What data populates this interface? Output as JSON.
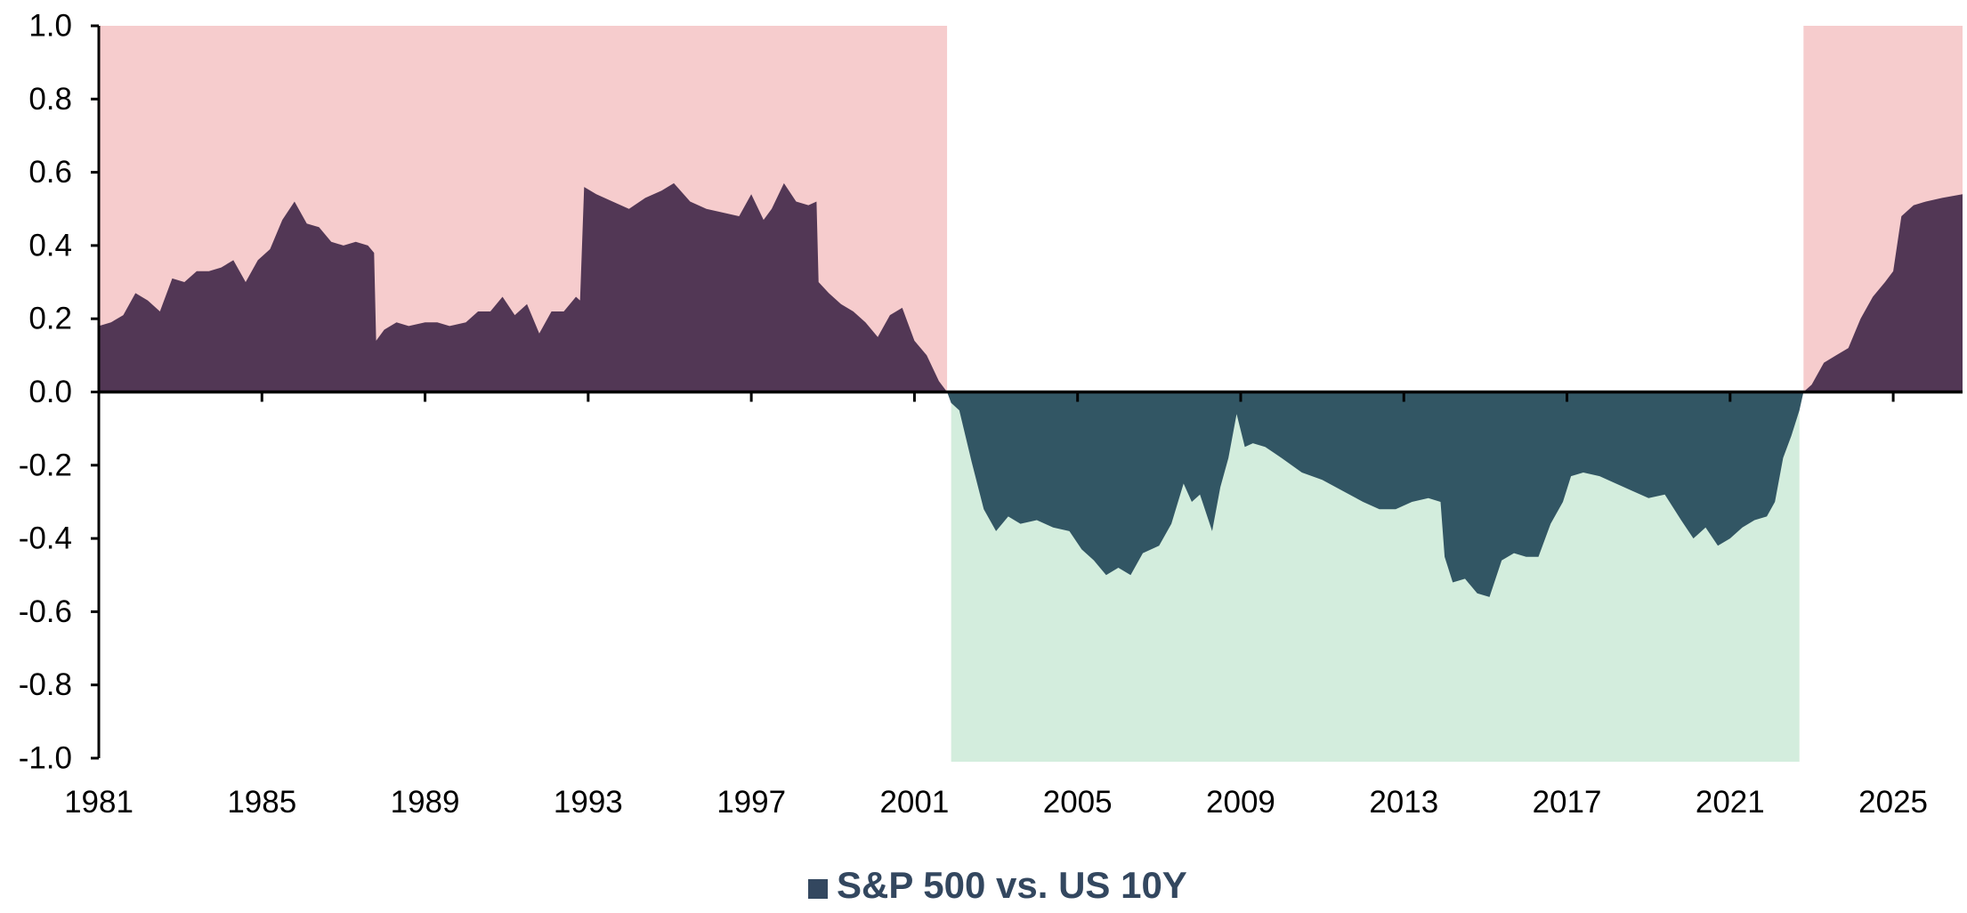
{
  "chart_data": {
    "type": "area",
    "legend": {
      "position": "bottom-center",
      "entries": [
        {
          "name": "S&P 500 vs. US 10Y",
          "color": "#33475f"
        }
      ]
    },
    "x_axis": {
      "range": [
        1981,
        2026.7
      ],
      "tick_labels": [
        "1981",
        "1985",
        "1989",
        "1993",
        "1997",
        "2001",
        "2005",
        "2009",
        "2013",
        "2017",
        "2021",
        "2025"
      ]
    },
    "y_axis": {
      "range": [
        -1.0,
        1.0
      ],
      "tick_labels": [
        "1.0",
        "0.8",
        "0.6",
        "0.4",
        "0.2",
        "0.0",
        "-0.2",
        "-0.4",
        "-0.6",
        "-0.8",
        "-1.0"
      ]
    },
    "grid": false,
    "regimes": [
      {
        "sign": "positive",
        "from": 1981.0,
        "to": 2001.8,
        "color": "#f6cccd"
      },
      {
        "sign": "negative",
        "from": 2001.9,
        "to": 2022.7,
        "color": "#d3eddd"
      },
      {
        "sign": "positive",
        "from": 2022.8,
        "to": 2026.7,
        "color": "#f6cccd"
      }
    ],
    "colors": {
      "positive_area": "#523755",
      "negative_area": "#325664",
      "axis": "#000000"
    },
    "series": [
      {
        "name": "S&P 500 vs. US 10Y",
        "x": [
          1981.0,
          1981.3,
          1981.6,
          1981.9,
          1982.2,
          1982.5,
          1982.8,
          1983.1,
          1983.4,
          1983.7,
          1984.0,
          1984.3,
          1984.6,
          1984.9,
          1985.2,
          1985.5,
          1985.8,
          1986.1,
          1986.4,
          1986.7,
          1987.0,
          1987.3,
          1987.6,
          1987.75,
          1987.8,
          1988.0,
          1988.3,
          1988.6,
          1989.0,
          1989.3,
          1989.6,
          1990.0,
          1990.3,
          1990.6,
          1990.9,
          1991.2,
          1991.5,
          1991.8,
          1992.1,
          1992.4,
          1992.7,
          1992.8,
          1992.9,
          1993.2,
          1993.6,
          1994.0,
          1994.4,
          1994.8,
          1995.1,
          1995.5,
          1995.9,
          1996.3,
          1996.7,
          1997.0,
          1997.3,
          1997.5,
          1997.8,
          1998.1,
          1998.4,
          1998.6,
          1998.65,
          1998.9,
          1999.2,
          1999.5,
          1999.8,
          2000.1,
          2000.4,
          2000.7,
          2001.0,
          2001.3,
          2001.6,
          2001.8,
          2001.9,
          2002.1,
          2002.4,
          2002.7,
          2003.0,
          2003.3,
          2003.6,
          2004.0,
          2004.4,
          2004.8,
          2005.1,
          2005.4,
          2005.7,
          2006.0,
          2006.3,
          2006.6,
          2007.0,
          2007.3,
          2007.6,
          2007.8,
          2008.0,
          2008.3,
          2008.5,
          2008.7,
          2008.9,
          2009.1,
          2009.3,
          2009.6,
          2010.0,
          2010.5,
          2011.0,
          2011.5,
          2012.0,
          2012.4,
          2012.8,
          2013.2,
          2013.6,
          2013.9,
          2014.0,
          2014.2,
          2014.5,
          2014.8,
          2015.1,
          2015.4,
          2015.7,
          2016.0,
          2016.3,
          2016.6,
          2016.9,
          2017.1,
          2017.4,
          2017.8,
          2018.2,
          2018.6,
          2019.0,
          2019.4,
          2019.8,
          2020.1,
          2020.4,
          2020.7,
          2021.0,
          2021.3,
          2021.6,
          2021.9,
          2022.1,
          2022.3,
          2022.5,
          2022.7,
          2022.8,
          2023.0,
          2023.3,
          2023.6,
          2023.9,
          2024.2,
          2024.5,
          2024.8,
          2025.0,
          2025.2,
          2025.5,
          2025.8,
          2026.2,
          2026.7
        ],
        "y": [
          0.18,
          0.19,
          0.21,
          0.27,
          0.25,
          0.22,
          0.31,
          0.3,
          0.33,
          0.33,
          0.34,
          0.36,
          0.3,
          0.36,
          0.39,
          0.47,
          0.52,
          0.46,
          0.45,
          0.41,
          0.4,
          0.41,
          0.4,
          0.38,
          0.14,
          0.17,
          0.19,
          0.18,
          0.19,
          0.19,
          0.18,
          0.19,
          0.22,
          0.22,
          0.26,
          0.21,
          0.24,
          0.16,
          0.22,
          0.22,
          0.26,
          0.25,
          0.56,
          0.54,
          0.52,
          0.5,
          0.53,
          0.55,
          0.57,
          0.52,
          0.5,
          0.49,
          0.48,
          0.54,
          0.47,
          0.5,
          0.57,
          0.52,
          0.51,
          0.52,
          0.3,
          0.27,
          0.24,
          0.22,
          0.19,
          0.15,
          0.21,
          0.23,
          0.14,
          0.1,
          0.03,
          0.0,
          -0.03,
          -0.05,
          -0.19,
          -0.32,
          -0.38,
          -0.34,
          -0.36,
          -0.35,
          -0.37,
          -0.38,
          -0.43,
          -0.46,
          -0.5,
          -0.48,
          -0.5,
          -0.44,
          -0.42,
          -0.36,
          -0.25,
          -0.3,
          -0.28,
          -0.38,
          -0.26,
          -0.18,
          -0.06,
          -0.15,
          -0.14,
          -0.15,
          -0.18,
          -0.22,
          -0.24,
          -0.27,
          -0.3,
          -0.32,
          -0.32,
          -0.3,
          -0.29,
          -0.3,
          -0.45,
          -0.52,
          -0.51,
          -0.55,
          -0.56,
          -0.46,
          -0.44,
          -0.45,
          -0.45,
          -0.36,
          -0.3,
          -0.23,
          -0.22,
          -0.23,
          -0.25,
          -0.27,
          -0.29,
          -0.28,
          -0.35,
          -0.4,
          -0.37,
          -0.42,
          -0.4,
          -0.37,
          -0.35,
          -0.34,
          -0.3,
          -0.18,
          -0.12,
          -0.05,
          0.0,
          0.02,
          0.08,
          0.1,
          0.12,
          0.2,
          0.26,
          0.3,
          0.33,
          0.48,
          0.51,
          0.52,
          0.53,
          0.54
        ]
      }
    ]
  }
}
